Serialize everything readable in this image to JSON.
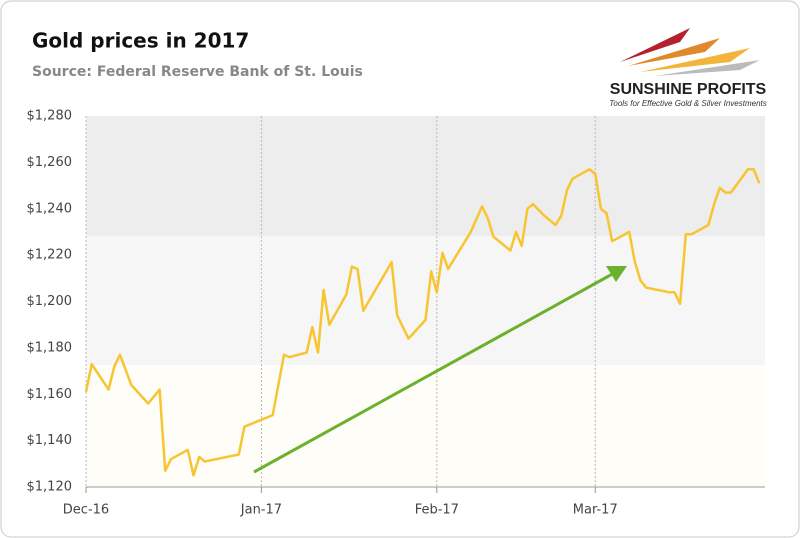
{
  "chart_data": {
    "type": "line",
    "title": "Gold prices in 2017",
    "subtitle": "Source: Federal Reserve Bank of St. Louis",
    "logo": {
      "name": "SUNSHINE PROFITS",
      "tagline": "Tools for Effective Gold & Silver Investments"
    },
    "x": [
      0,
      1,
      4,
      5,
      6,
      8,
      11,
      13,
      14,
      15,
      18,
      19,
      20,
      21,
      27,
      28,
      33,
      35,
      36,
      39,
      40,
      41,
      42,
      43,
      46,
      47,
      48,
      49,
      54,
      55,
      57,
      60,
      61,
      62,
      63,
      64,
      68,
      70,
      71,
      72,
      75,
      76,
      77,
      78,
      79,
      81,
      83,
      84,
      85,
      86,
      89,
      90,
      91,
      92,
      93,
      96,
      97,
      98,
      99,
      103,
      104,
      105,
      106,
      107,
      110,
      111,
      112,
      113,
      114,
      117,
      118,
      119
    ],
    "series": [
      {
        "name": "Gold price",
        "color": "#f7c531",
        "values": [
          1161,
          1173,
          1162,
          1172,
          1177,
          1164,
          1156,
          1162,
          1127,
          1132,
          1136,
          1125,
          1133,
          1131,
          1134,
          1146,
          1151,
          1177,
          1176,
          1178,
          1189,
          1178,
          1205,
          1190,
          1203,
          1215,
          1214,
          1196,
          1217,
          1194,
          1184,
          1192,
          1213,
          1204,
          1221,
          1214,
          1230,
          1241,
          1236,
          1228,
          1222,
          1230,
          1224,
          1240,
          1242,
          1237,
          1233,
          1237,
          1248,
          1253,
          1257,
          1255,
          1240,
          1238,
          1226,
          1230,
          1217,
          1209,
          1206,
          1204,
          1204,
          1199,
          1229,
          1229,
          1233,
          1242,
          1249,
          1247,
          1247,
          1257,
          1257,
          1251
        ]
      }
    ],
    "xlim": [
      0,
      120
    ],
    "xticks": [
      {
        "value": 0,
        "label": "Dec-16"
      },
      {
        "value": 31,
        "label": "Jan-17"
      },
      {
        "value": 62,
        "label": "Feb-17"
      },
      {
        "value": 90,
        "label": "Mar-17"
      }
    ],
    "ylim": [
      1120,
      1280
    ],
    "yticks": [
      {
        "value": 1120,
        "label": "$1,120"
      },
      {
        "value": 1140,
        "label": "$1,140"
      },
      {
        "value": 1160,
        "label": "$1,160"
      },
      {
        "value": 1180,
        "label": "$1,180"
      },
      {
        "value": 1200,
        "label": "$1,200"
      },
      {
        "value": 1220,
        "label": "$1,220"
      },
      {
        "value": 1240,
        "label": "$1,240"
      },
      {
        "value": 1260,
        "label": "$1,260"
      },
      {
        "value": 1280,
        "label": "$1,280"
      }
    ],
    "x_grid": true
  }
}
